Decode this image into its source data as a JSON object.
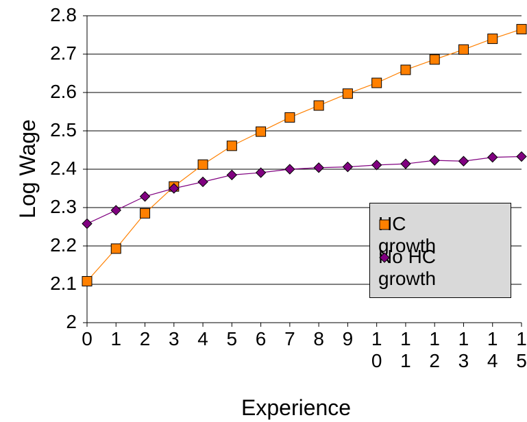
{
  "chart_data": {
    "type": "line",
    "x_label": "Experience",
    "y_label": "Log Wage",
    "categories": [
      "0",
      "1",
      "2",
      "3",
      "4",
      "5",
      "6",
      "7",
      "8",
      "9",
      "10",
      "11",
      "12",
      "13",
      "14",
      "15"
    ],
    "series": [
      {
        "name": "HC growth",
        "color": "#ff8000",
        "marker": "square",
        "values": [
          2.108,
          2.193,
          2.285,
          2.355,
          2.412,
          2.461,
          2.498,
          2.535,
          2.566,
          2.597,
          2.625,
          2.659,
          2.686,
          2.712,
          2.74,
          2.765
        ]
      },
      {
        "name": "No HC growth",
        "color": "#800080",
        "marker": "diamond",
        "values": [
          2.258,
          2.293,
          2.329,
          2.35,
          2.367,
          2.385,
          2.391,
          2.4,
          2.404,
          2.406,
          2.411,
          2.414,
          2.423,
          2.421,
          2.431,
          2.433
        ]
      }
    ],
    "ylim": [
      2,
      2.8
    ],
    "yticks": [
      2,
      2.1,
      2.2,
      2.3,
      2.4,
      2.5,
      2.6,
      2.7,
      2.8
    ],
    "grid": true,
    "legend": "right"
  }
}
